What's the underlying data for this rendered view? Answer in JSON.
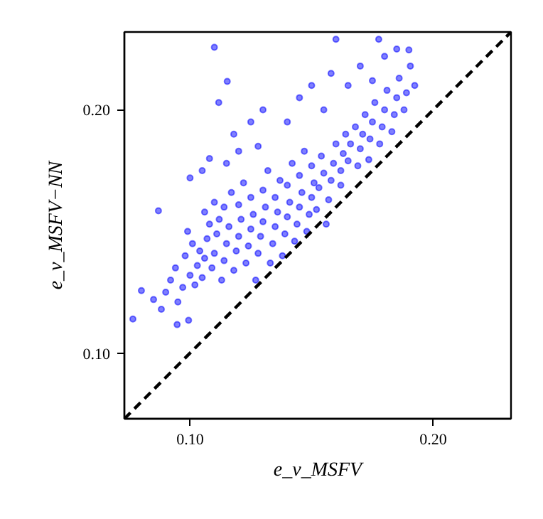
{
  "chart_data": {
    "type": "scatter",
    "xlabel": "e_v_MSFV",
    "ylabel": "e_v_MSFV−NN",
    "xlim": [
      0.073,
      0.232
    ],
    "ylim": [
      0.073,
      0.232
    ],
    "xticks": [
      {
        "value": 0.1,
        "label": "0.10"
      },
      {
        "value": 0.2,
        "label": "0.20"
      }
    ],
    "yticks": [
      {
        "value": 0.1,
        "label": "0.10"
      },
      {
        "value": 0.2,
        "label": "0.20"
      }
    ],
    "grid": false,
    "series": [
      {
        "marker": "circle",
        "color": "#0000ff",
        "x": [
          0.0765,
          0.0947,
          0.0994,
          0.08,
          0.0882,
          0.085,
          0.09,
          0.092,
          0.087,
          0.095,
          0.097,
          0.094,
          0.098,
          0.1,
          0.102,
          0.103,
          0.101,
          0.099,
          0.104,
          0.105,
          0.106,
          0.107,
          0.108,
          0.106,
          0.109,
          0.11,
          0.111,
          0.112,
          0.11,
          0.113,
          0.114,
          0.115,
          0.116,
          0.114,
          0.117,
          0.118,
          0.119,
          0.12,
          0.121,
          0.12,
          0.122,
          0.123,
          0.124,
          0.125,
          0.126,
          0.125,
          0.127,
          0.128,
          0.129,
          0.13,
          0.131,
          0.13,
          0.132,
          0.133,
          0.134,
          0.135,
          0.136,
          0.135,
          0.137,
          0.138,
          0.139,
          0.14,
          0.141,
          0.14,
          0.142,
          0.143,
          0.144,
          0.145,
          0.146,
          0.145,
          0.147,
          0.148,
          0.149,
          0.15,
          0.151,
          0.15,
          0.152,
          0.153,
          0.155,
          0.154,
          0.156,
          0.157,
          0.158,
          0.159,
          0.16,
          0.162,
          0.162,
          0.163,
          0.164,
          0.165,
          0.166,
          0.168,
          0.169,
          0.17,
          0.171,
          0.172,
          0.1735,
          0.174,
          0.175,
          0.176,
          0.178,
          0.179,
          0.18,
          0.181,
          0.183,
          0.184,
          0.185,
          0.186,
          0.188,
          0.189,
          0.1906,
          0.19,
          0.1924,
          0.1776,
          0.16,
          0.1118,
          0.1153,
          0.11,
          0.118,
          0.125,
          0.13,
          0.128,
          0.14,
          0.145,
          0.15,
          0.155,
          0.158,
          0.165,
          0.17,
          0.175,
          0.18,
          0.185,
          0.1,
          0.105,
          0.108,
          0.115,
          0.12
        ],
        "values": [
          0.114,
          0.1117,
          0.1135,
          0.1257,
          0.118,
          0.122,
          0.125,
          0.13,
          0.1585,
          0.121,
          0.127,
          0.135,
          0.14,
          0.132,
          0.128,
          0.136,
          0.145,
          0.15,
          0.142,
          0.131,
          0.139,
          0.147,
          0.153,
          0.158,
          0.135,
          0.141,
          0.149,
          0.155,
          0.162,
          0.13,
          0.138,
          0.145,
          0.152,
          0.16,
          0.166,
          0.134,
          0.142,
          0.148,
          0.155,
          0.161,
          0.17,
          0.137,
          0.144,
          0.151,
          0.157,
          0.164,
          0.13,
          0.141,
          0.148,
          0.154,
          0.16,
          0.167,
          0.175,
          0.137,
          0.145,
          0.152,
          0.158,
          0.164,
          0.171,
          0.14,
          0.149,
          0.156,
          0.162,
          0.169,
          0.178,
          0.146,
          0.153,
          0.16,
          0.166,
          0.173,
          0.183,
          0.15,
          0.157,
          0.164,
          0.17,
          0.177,
          0.159,
          0.168,
          0.174,
          0.181,
          0.153,
          0.163,
          0.171,
          0.178,
          0.186,
          0.169,
          0.175,
          0.182,
          0.19,
          0.179,
          0.186,
          0.193,
          0.177,
          0.184,
          0.19,
          0.198,
          0.1795,
          0.188,
          0.195,
          0.203,
          0.186,
          0.193,
          0.2,
          0.208,
          0.191,
          0.198,
          0.205,
          0.213,
          0.2,
          0.207,
          0.218,
          0.2246,
          0.21,
          0.229,
          0.229,
          0.203,
          0.2117,
          0.2257,
          0.19,
          0.195,
          0.2,
          0.185,
          0.195,
          0.205,
          0.21,
          0.2,
          0.215,
          0.21,
          0.218,
          0.212,
          0.222,
          0.225,
          0.172,
          0.175,
          0.18,
          0.178,
          0.183
        ]
      },
      {
        "type": "line",
        "color": "#000000",
        "line_style": "dashed",
        "x": [
          0.073,
          0.232
        ],
        "values": [
          0.073,
          0.232
        ]
      }
    ]
  }
}
